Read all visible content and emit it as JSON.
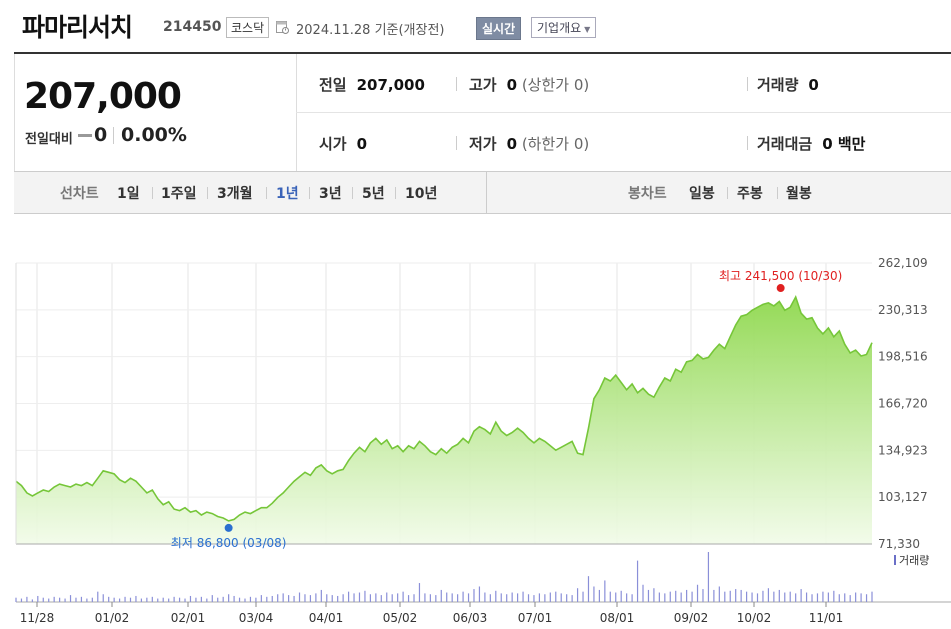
{
  "header": {
    "company": "파마리서치",
    "code": "214450",
    "market": "코스닥",
    "date": "2024.11.28 기준(개장전)",
    "realtime_label": "실시간",
    "overview_label": "기업개요"
  },
  "summary": {
    "price": "207,000",
    "change_label": "전일대비",
    "change_value": "0",
    "change_pct": "0.00%"
  },
  "stats": {
    "prev_close_label": "전일",
    "prev_close": "207,000",
    "high_label": "고가",
    "high": "0",
    "high_sub": "(상한가 0)",
    "volume_label": "거래량",
    "volume": "0",
    "open_label": "시가",
    "open": "0",
    "low_label": "저가",
    "low": "0",
    "low_sub": "(하한가 0)",
    "value_label": "거래대금",
    "value": "0 백만"
  },
  "tabs": {
    "line_label": "선차트",
    "line_items": [
      "1일",
      "1주일",
      "3개월",
      "1년",
      "3년",
      "5년",
      "10년"
    ],
    "active": "1년",
    "candle_label": "봉차트",
    "candle_items": [
      "일봉",
      "주봉",
      "월봉"
    ]
  },
  "colors": {
    "accent": "#3a63b8",
    "line": "#76c639",
    "high_marker": "#e02020",
    "low_marker": "#2a6fd0",
    "volume": "#8a8fd8"
  },
  "chart_data": {
    "type": "area",
    "x_ticks": [
      "11/28",
      "01/02",
      "02/01",
      "03/04",
      "04/01",
      "05/02",
      "06/03",
      "07/01",
      "08/01",
      "09/02",
      "10/02",
      "11/01"
    ],
    "y_ticks": [
      "262,109",
      "230,313",
      "198,516",
      "166,720",
      "134,923",
      "103,127",
      "71,330"
    ],
    "ylim": [
      71330,
      262109
    ],
    "high_annotation": "최고 241,500 (10/30)",
    "low_annotation": "최저 86,800 (03/08)",
    "volume_label": "거래량",
    "series": [
      {
        "values": [
          114000,
          111000,
          106000,
          104000,
          106000,
          108000,
          107000,
          110000,
          112000,
          111000,
          110000,
          112000,
          111000,
          113000,
          111000,
          116000,
          121000,
          120000,
          119000,
          115000,
          113000,
          116000,
          114000,
          110000,
          106000,
          108000,
          102000,
          98000,
          100000,
          95000,
          94000,
          96000,
          93000,
          94000,
          91000,
          93000,
          92000,
          90000,
          89000,
          87000,
          88000,
          91000,
          93000,
          92000,
          94000,
          96000,
          96000,
          99000,
          103000,
          106000,
          110000,
          114000,
          117000,
          120000,
          118000,
          123000,
          125000,
          121000,
          119000,
          121000,
          122000,
          128000,
          133000,
          137000,
          134000,
          140000,
          143000,
          139000,
          142000,
          136000,
          138000,
          134000,
          138000,
          136000,
          141000,
          138000,
          134000,
          132000,
          136000,
          133000,
          137000,
          139000,
          143000,
          140000,
          148000,
          151000,
          149000,
          146000,
          154000,
          148000,
          145000,
          147000,
          150000,
          147000,
          143000,
          140000,
          143000,
          141000,
          138000,
          135000,
          137000,
          139000,
          141000,
          133000,
          132000,
          150000,
          170000,
          176000,
          184000,
          182000,
          186000,
          181000,
          176000,
          180000,
          174000,
          177000,
          173000,
          171000,
          178000,
          184000,
          182000,
          190000,
          188000,
          195000,
          196000,
          200000,
          197000,
          198000,
          203000,
          207000,
          204000,
          212000,
          220000,
          226000,
          227000,
          230000,
          232000,
          234000,
          235000,
          233000,
          236000,
          230000,
          232000,
          239000,
          228000,
          224000,
          225000,
          218000,
          214000,
          218000,
          212000,
          216000,
          207000,
          201000,
          203000,
          199000,
          200000,
          208000
        ]
      }
    ],
    "volume": [
      5,
      4,
      6,
      3,
      7,
      5,
      4,
      6,
      5,
      4,
      8,
      5,
      6,
      4,
      5,
      12,
      9,
      6,
      5,
      4,
      6,
      5,
      7,
      4,
      5,
      6,
      4,
      5,
      4,
      6,
      5,
      4,
      7,
      5,
      6,
      4,
      8,
      5,
      6,
      9,
      7,
      5,
      4,
      6,
      5,
      8,
      6,
      7,
      9,
      10,
      8,
      7,
      11,
      9,
      8,
      10,
      14,
      9,
      8,
      7,
      9,
      12,
      10,
      11,
      13,
      9,
      10,
      8,
      11,
      9,
      10,
      12,
      8,
      9,
      22,
      10,
      9,
      8,
      14,
      11,
      10,
      9,
      12,
      10,
      15,
      18,
      11,
      9,
      13,
      10,
      9,
      11,
      10,
      12,
      9,
      8,
      10,
      9,
      11,
      12,
      10,
      9,
      8,
      16,
      12,
      30,
      18,
      14,
      25,
      12,
      11,
      13,
      10,
      9,
      48,
      20,
      14,
      16,
      11,
      10,
      12,
      13,
      11,
      14,
      12,
      20,
      15,
      58,
      14,
      18,
      12,
      13,
      15,
      14,
      12,
      11,
      10,
      13,
      16,
      12,
      14,
      11,
      12,
      10,
      15,
      11,
      9,
      10,
      12,
      11,
      13,
      9,
      10,
      8,
      11,
      10,
      9,
      12
    ]
  }
}
